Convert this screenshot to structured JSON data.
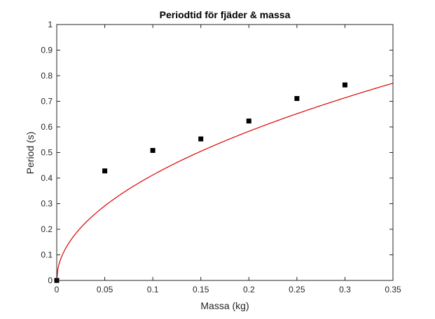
{
  "chart_data": {
    "type": "scatter",
    "title": "Periodtid för fjäder & massa",
    "xlabel": "Massa (kg)",
    "ylabel": "Period (s)",
    "xlim": [
      0,
      0.35
    ],
    "ylim": [
      0,
      1
    ],
    "xticks": [
      0,
      0.05,
      0.1,
      0.15,
      0.2,
      0.25,
      0.3,
      0.35
    ],
    "yticks": [
      0,
      0.1,
      0.2,
      0.3,
      0.4,
      0.5,
      0.6,
      0.7,
      0.8,
      0.9,
      1
    ],
    "grid": false,
    "legend": "none",
    "series": [
      {
        "type": "scatter",
        "marker": "square",
        "color": "#000000",
        "x": [
          0,
          0.05,
          0.1,
          0.15,
          0.2,
          0.25,
          0.3
        ],
        "y": [
          0,
          0.428,
          0.508,
          0.553,
          0.623,
          0.711,
          0.764
        ]
      },
      {
        "type": "line",
        "function": "sqrt",
        "color": "#e00000",
        "coefficient": 1.303
      }
    ]
  }
}
